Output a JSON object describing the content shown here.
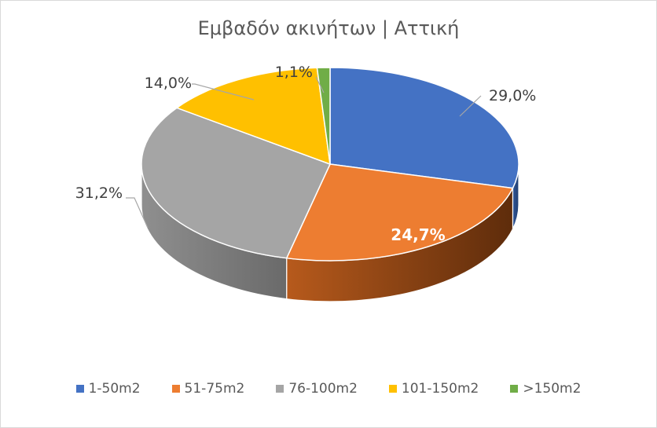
{
  "chart_data": {
    "type": "pie",
    "title": "Εμβαδόν ακινήτων | Αττική",
    "categories": [
      "1-50m2",
      "51-75m2",
      "76-100m2",
      "101-150m2",
      ">150m2"
    ],
    "values": [
      29.0,
      24.7,
      31.2,
      14.0,
      1.1
    ],
    "labels": [
      "29,0%",
      "24,7%",
      "31,2%",
      "14,0%",
      "1,1%"
    ],
    "colors": [
      "#4472c4",
      "#ed7d31",
      "#a5a5a5",
      "#ffc000",
      "#70ad47"
    ],
    "legend": "bottom",
    "style": "3d"
  }
}
